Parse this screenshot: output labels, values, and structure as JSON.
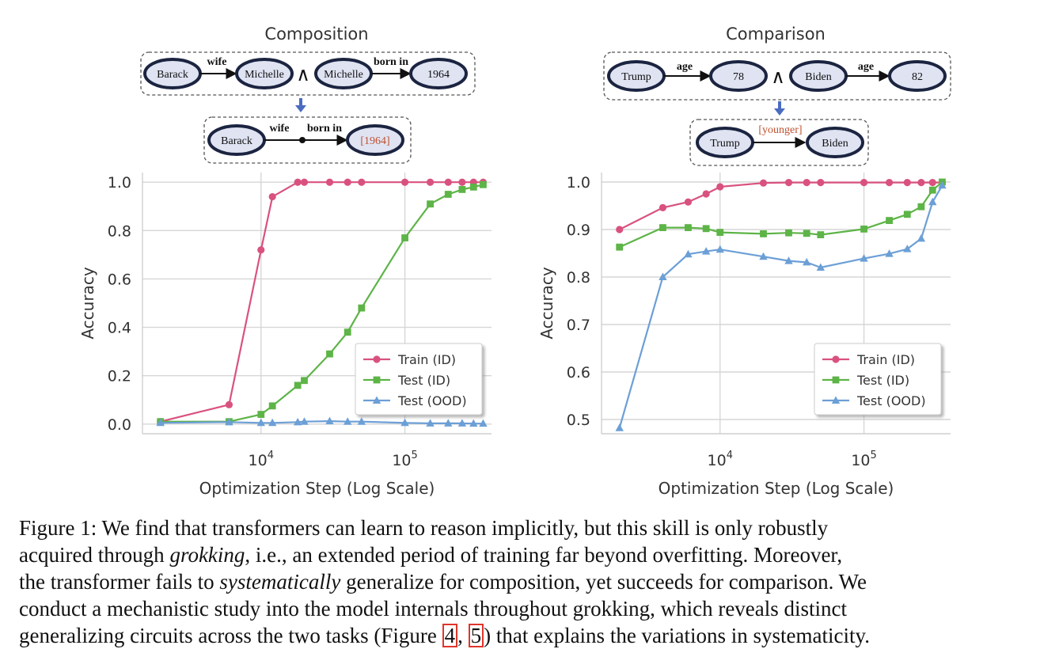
{
  "diagrams": {
    "composition": {
      "title": "Composition",
      "premise": [
        {
          "head": "Barack",
          "relation": "wife",
          "tail": "Michelle"
        },
        {
          "head": "Michelle",
          "relation": "born in",
          "tail": "1964"
        }
      ],
      "and_symbol": "∧",
      "conclusion": {
        "head": "Barack",
        "relation1": "wife",
        "relation2": "born in",
        "tail": "[1964]"
      }
    },
    "comparison": {
      "title": "Comparison",
      "premise": [
        {
          "head": "Trump",
          "relation": "age",
          "tail": "78"
        },
        {
          "head": "Biden",
          "relation": "age",
          "tail": "82"
        }
      ],
      "and_symbol": "∧",
      "conclusion": {
        "head": "Trump",
        "relation": "[younger]",
        "tail": "Biden"
      }
    }
  },
  "colors": {
    "train": "#d9527f",
    "test_id": "#5db447",
    "test_ood": "#6c9fd6",
    "answer": "#c0502d",
    "node_fill": "#dfe3f2",
    "arrow_down": "#4a6cc0"
  },
  "chart_data": [
    {
      "type": "line",
      "title": "",
      "xlabel": "Optimization Step (Log Scale)",
      "ylabel": "Accuracy",
      "xscale": "log",
      "xlim": [
        1500,
        400000
      ],
      "ylim": [
        -0.04,
        1.04
      ],
      "yticks": [
        0.0,
        0.2,
        0.4,
        0.6,
        0.8,
        1.0
      ],
      "ytick_labels": [
        "0.0",
        "0.2",
        "0.4",
        "0.6",
        "0.8",
        "1.0"
      ],
      "xticks": [
        10000,
        100000
      ],
      "xtick_labels": [
        {
          "base": "10",
          "exp": "4"
        },
        {
          "base": "10",
          "exp": "5"
        }
      ],
      "legend_position": "lower-right",
      "series": [
        {
          "name": "Train (ID)",
          "marker": "circle",
          "x": [
            2000,
            6000,
            10000,
            12000,
            18000,
            20000,
            30000,
            40000,
            50000,
            100000,
            150000,
            200000,
            250000,
            300000,
            350000
          ],
          "y": [
            0.01,
            0.08,
            0.72,
            0.94,
            1.0,
            1.0,
            1.0,
            1.0,
            1.0,
            1.0,
            1.0,
            1.0,
            1.0,
            1.0,
            1.0
          ]
        },
        {
          "name": "Test (ID)",
          "marker": "square",
          "x": [
            2000,
            6000,
            10000,
            12000,
            18000,
            20000,
            30000,
            40000,
            50000,
            100000,
            150000,
            200000,
            250000,
            300000,
            350000
          ],
          "y": [
            0.01,
            0.01,
            0.04,
            0.075,
            0.16,
            0.18,
            0.29,
            0.38,
            0.48,
            0.77,
            0.91,
            0.95,
            0.97,
            0.98,
            0.99
          ]
        },
        {
          "name": "Test (OOD)",
          "marker": "triangle",
          "x": [
            2000,
            6000,
            10000,
            12000,
            18000,
            20000,
            30000,
            40000,
            50000,
            100000,
            150000,
            200000,
            250000,
            300000,
            350000
          ],
          "y": [
            0.005,
            0.008,
            0.005,
            0.005,
            0.008,
            0.01,
            0.012,
            0.01,
            0.01,
            0.005,
            0.003,
            0.003,
            0.003,
            0.002,
            0.002
          ]
        }
      ]
    },
    {
      "type": "line",
      "title": "",
      "xlabel": "Optimization Step (Log Scale)",
      "ylabel": "Accuracy",
      "xscale": "log",
      "xlim": [
        1500,
        400000
      ],
      "ylim": [
        0.47,
        1.02
      ],
      "yticks": [
        0.5,
        0.6,
        0.7,
        0.8,
        0.9,
        1.0
      ],
      "ytick_labels": [
        "0.5",
        "0.6",
        "0.7",
        "0.8",
        "0.9",
        "1.0"
      ],
      "xticks": [
        10000,
        100000
      ],
      "xtick_labels": [
        {
          "base": "10",
          "exp": "4"
        },
        {
          "base": "10",
          "exp": "5"
        }
      ],
      "legend_position": "lower-right",
      "series": [
        {
          "name": "Train (ID)",
          "marker": "circle",
          "x": [
            2000,
            4000,
            6000,
            8000,
            10000,
            20000,
            30000,
            40000,
            50000,
            100000,
            150000,
            200000,
            250000,
            300000,
            350000
          ],
          "y": [
            0.9,
            0.946,
            0.958,
            0.975,
            0.99,
            0.998,
            0.999,
            0.999,
            0.999,
            0.999,
            0.999,
            0.999,
            0.999,
            0.999,
            0.999
          ]
        },
        {
          "name": "Test (ID)",
          "marker": "square",
          "x": [
            2000,
            4000,
            6000,
            8000,
            10000,
            20000,
            30000,
            40000,
            50000,
            100000,
            150000,
            200000,
            250000,
            300000,
            350000
          ],
          "y": [
            0.863,
            0.904,
            0.904,
            0.902,
            0.894,
            0.891,
            0.893,
            0.892,
            0.889,
            0.901,
            0.919,
            0.932,
            0.948,
            0.983,
            1.0
          ]
        },
        {
          "name": "Test (OOD)",
          "marker": "triangle",
          "x": [
            2000,
            4000,
            6000,
            8000,
            10000,
            20000,
            30000,
            40000,
            50000,
            100000,
            150000,
            200000,
            250000,
            300000,
            350000
          ],
          "y": [
            0.482,
            0.8,
            0.848,
            0.854,
            0.858,
            0.843,
            0.834,
            0.831,
            0.82,
            0.839,
            0.849,
            0.859,
            0.881,
            0.958,
            0.993
          ]
        }
      ]
    }
  ],
  "caption": {
    "line1": "Figure 1: We find that transformers can learn to reason implicitly, but this skill is only robustly",
    "line2_a": "acquired through ",
    "line2_em": "grokking",
    "line2_b": ", i.e., an extended period of training far beyond overfitting. Moreover,",
    "line3_a": "the transformer fails to ",
    "line3_em": "systematically",
    "line3_b": " generalize for composition, yet succeeds for comparison. We",
    "line4": "conduct a mechanistic study into the model internals throughout grokking, which reveals distinct",
    "line5_a": "generalizing circuits across the two tasks (Figure ",
    "ref1": "4",
    "ref_sep": ", ",
    "ref2": "5",
    "line5_b": ") that explains the variations in systematicity."
  }
}
